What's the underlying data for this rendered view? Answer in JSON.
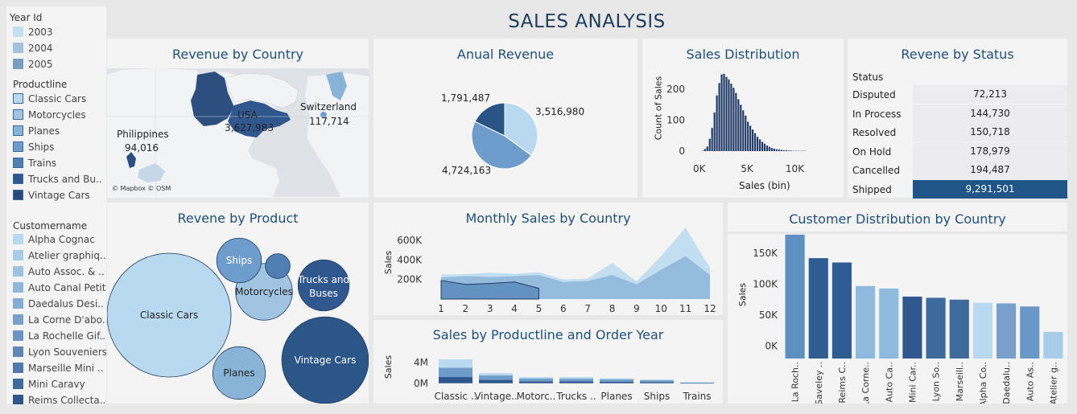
{
  "dashboard": {
    "title": "SALES ANALYSIS"
  },
  "colors": {
    "c1": "#b8d9ef",
    "c2": "#a0c4e2",
    "c3": "#8ab3d8",
    "c4": "#6e9ccb",
    "c5": "#4f7fb3",
    "c6": "#30588f",
    "c7": "#254b7c",
    "accent": "#1f4e79"
  },
  "filters": {
    "year_header": "Year Id",
    "years": [
      {
        "label": "2003",
        "color": "#c5dff0"
      },
      {
        "label": "2004",
        "color": "#a4c1de"
      },
      {
        "label": "2005",
        "color": "#7a9dc2"
      }
    ],
    "productline_header": "Productline",
    "productlines": [
      {
        "label": "Classic Cars",
        "color": "#b8d9ef"
      },
      {
        "label": "Motorcycles",
        "color": "#a0c4e2"
      },
      {
        "label": "Planes",
        "color": "#8ab3d8"
      },
      {
        "label": "Ships",
        "color": "#6e9ccb"
      },
      {
        "label": "Trains",
        "color": "#4f7fb3"
      },
      {
        "label": "Trucks and Bu..",
        "color": "#30588f"
      },
      {
        "label": "Vintage Cars",
        "color": "#254b7c"
      }
    ],
    "customer_header": "Customername",
    "customers": [
      {
        "label": "Alpha Cognac",
        "color": "#b8d9ef"
      },
      {
        "label": "Atelier graphiq..",
        "color": "#a8cde8"
      },
      {
        "label": "Auto Assoc. & ..",
        "color": "#9cc2e2"
      },
      {
        "label": "Auto Canal Petit",
        "color": "#90b8dc"
      },
      {
        "label": "Daedalus Desi..",
        "color": "#84acd4"
      },
      {
        "label": "La Corne D'abo..",
        "color": "#78a0cb"
      },
      {
        "label": "La Rochelle Gif..",
        "color": "#6c95c3"
      },
      {
        "label": "Lyon Souveniers",
        "color": "#5f88b8"
      },
      {
        "label": "Marseille Mini ..",
        "color": "#4f7aab"
      },
      {
        "label": "Mini Caravy",
        "color": "#3f6b9c"
      },
      {
        "label": "Reims Collecta..",
        "color": "#30588f"
      }
    ]
  },
  "revenue_by_country": {
    "title": "Revenue by Country",
    "points": [
      {
        "country": "USA",
        "value": "3,627,983"
      },
      {
        "country": "Switzerland",
        "value": "117,714"
      },
      {
        "country": "Philippines",
        "value": "94,016"
      }
    ],
    "attribution": "© Mapbox © OSM"
  },
  "annual_revenue": {
    "title": "Anual Revenue",
    "chart_data": {
      "type": "pie",
      "labels": [
        "2003",
        "2004",
        "2005"
      ],
      "values": [
        3516980,
        4724163,
        1791487
      ],
      "display": [
        "3,516,980",
        "4,724,163",
        "1,791,487"
      ],
      "colors": [
        "#b8d9ef",
        "#6e9ccb",
        "#2b5486"
      ]
    }
  },
  "sales_distribution": {
    "title": "Sales Distribution",
    "chart_data": {
      "type": "bar",
      "xlabel": "Sales (bin)",
      "ylabel": "Count of Sales",
      "xlim": [
        -400,
        12400
      ],
      "ylim": [
        0,
        260
      ],
      "x_ticks": [
        {
          "v": 0,
          "label": "0K"
        },
        {
          "v": 5000,
          "label": "5K"
        },
        {
          "v": 10000,
          "label": "10K"
        }
      ],
      "y_ticks": [
        {
          "v": 0,
          "label": "0"
        },
        {
          "v": 100,
          "label": "100"
        },
        {
          "v": 200,
          "label": "200"
        }
      ],
      "bin_width": 250,
      "bin_start": 0,
      "values": [
        0,
        1,
        7,
        15,
        40,
        75,
        125,
        180,
        220,
        248,
        250,
        240,
        232,
        218,
        205,
        188,
        168,
        150,
        132,
        115,
        95,
        82,
        70,
        58,
        46,
        38,
        30,
        24,
        18,
        14,
        10,
        8,
        6,
        5,
        4,
        3,
        3,
        2,
        2,
        1,
        1,
        1,
        1,
        1,
        1,
        0,
        0,
        0,
        0,
        0
      ]
    }
  },
  "revenue_by_status": {
    "title": "Revene by Status",
    "header": "Status",
    "rows": [
      {
        "status": "Disputed",
        "value": "72,213"
      },
      {
        "status": "In Process",
        "value": "144,730"
      },
      {
        "status": "Resolved",
        "value": "150,718"
      },
      {
        "status": "On Hold",
        "value": "178,979"
      },
      {
        "status": "Cancelled",
        "value": "194,487"
      },
      {
        "status": "Shipped",
        "value": "9,291,501"
      }
    ],
    "highlight_color": "#1f5587"
  },
  "revenue_by_product": {
    "title": "Revene by Product",
    "bubbles": [
      {
        "label": "Classic Cars",
        "color": "#b8d9ef",
        "size": 1.0
      },
      {
        "label": "Vintage Cars",
        "color": "#2c5688",
        "size": 0.49
      },
      {
        "label": "Trucks and Buses",
        "color": "#30588f",
        "size": 0.17
      },
      {
        "label": "Motorcycles",
        "color": "#a0c4e2",
        "size": 0.21
      },
      {
        "label": "Planes",
        "color": "#8ab3d8",
        "size": 0.18
      },
      {
        "label": "Ships",
        "color": "#6e9ccb",
        "size": 0.13
      },
      {
        "label": "Trains",
        "color": "#4f7fb3",
        "size": 0.04
      }
    ]
  },
  "monthly_sales": {
    "title": "Monthly Sales by Country",
    "chart_data": {
      "type": "area",
      "x": [
        1,
        2,
        3,
        4,
        5,
        6,
        7,
        8,
        9,
        10,
        11,
        12
      ],
      "ylabel": "Sales",
      "ylim": [
        0,
        700000
      ],
      "y_ticks": [
        {
          "v": 200000,
          "label": "200K"
        },
        {
          "v": 400000,
          "label": "400K"
        },
        {
          "v": 600000,
          "label": "600K"
        }
      ],
      "series": [
        {
          "values": [
            250000,
            255000,
            270000,
            260000,
            275000,
            200000,
            210000,
            370000,
            180000,
            440000,
            730000,
            320000
          ],
          "color": "#b8d9ef"
        },
        {
          "values": [
            220000,
            235000,
            225000,
            235000,
            245000,
            175000,
            185000,
            245000,
            150000,
            300000,
            440000,
            245000
          ],
          "color": "#8ab3d8"
        },
        {
          "values": [
            190000,
            150000,
            160000,
            175000,
            110000,
            null,
            null,
            null,
            null,
            null,
            null,
            null
          ],
          "color": "#4f7fb3"
        }
      ]
    }
  },
  "sales_by_productline": {
    "title": "Sales by Productline and Order Year",
    "chart_data": {
      "type": "bar",
      "categories": [
        "Classic ..",
        "Vintage..",
        "Motorc..",
        "Trucks ..",
        "Planes",
        "Ships",
        "Trains"
      ],
      "ylabel": "Sales",
      "ylim": [
        -0.5,
        6
      ],
      "y_ticks": [
        {
          "v": 0,
          "label": "0M"
        },
        {
          "v": 4,
          "label": "4M"
        }
      ],
      "series": [
        {
          "name": "2003",
          "values": [
            1.2,
            0.65,
            0.38,
            0.37,
            0.31,
            0.23,
            0.07
          ],
          "color": "#30588f"
        },
        {
          "name": "2004",
          "values": [
            1.8,
            0.85,
            0.55,
            0.5,
            0.44,
            0.34,
            0.09
          ],
          "color": "#6e9ccb"
        },
        {
          "name": "2005",
          "values": [
            1.6,
            0.45,
            0.26,
            0.31,
            0.22,
            0.15,
            0.04
          ],
          "color": "#b8d9ef"
        }
      ]
    }
  },
  "customer_distribution": {
    "title": "Customer Distribution by Country",
    "chart_data": {
      "type": "bar",
      "ylabel": "Sales",
      "ylim": [
        -20000,
        185000
      ],
      "y_ticks": [
        {
          "v": 0,
          "label": "0K"
        },
        {
          "v": 50000,
          "label": "50K"
        },
        {
          "v": 100000,
          "label": "100K"
        },
        {
          "v": 150000,
          "label": "150K"
        }
      ],
      "categories": [
        "La Roch..",
        "Saveley ..",
        "Reims C..",
        "La Corne..",
        "Auto Ca..",
        "Mini Car..",
        "Lyon So..",
        "Marseill..",
        "Alpha Co..",
        "Daedalu..",
        "Auto As..",
        "Atelier g.."
      ],
      "values": [
        180000,
        142000,
        135000,
        97000,
        93000,
        80000,
        78000,
        75000,
        70000,
        69000,
        64000,
        23000
      ],
      "colors": [
        "#5f90c2",
        "#2f5d93",
        "#2f5d93",
        "#8fbadd",
        "#8fbadd",
        "#30588f",
        "#3d6a9d",
        "#3f6b9c",
        "#b8d9ef",
        "#78a0cb",
        "#6a98c6",
        "#a8cde8"
      ]
    }
  }
}
